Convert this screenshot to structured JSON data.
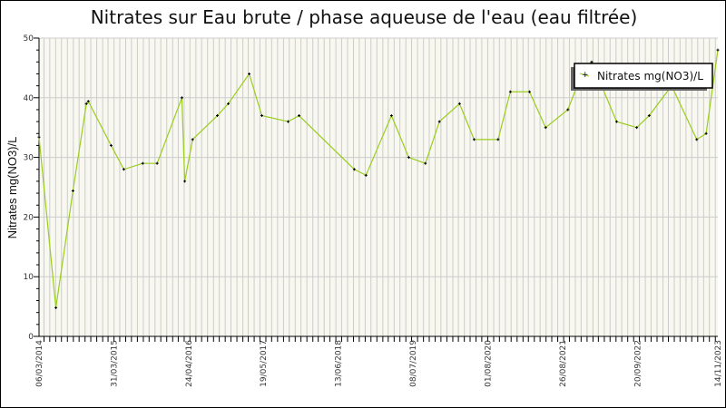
{
  "chart_data": {
    "type": "line",
    "title": "Nitrates sur Eau brute / phase aqueuse de l'eau (eau filtrée)",
    "xlabel": "",
    "ylabel": "Nitrates mg(NO3)/L",
    "ylim": [
      0,
      50
    ],
    "yticks": [
      0,
      10,
      20,
      30,
      40,
      50
    ],
    "xlim": [
      "2014-03-06",
      "2023-11-14"
    ],
    "xtick_labels": [
      "06/03/2014",
      "31/03/2015",
      "24/04/2016",
      "19/05/2017",
      "13/06/2018",
      "08/07/2019",
      "01/08/2020",
      "26/08/2021",
      "20/09/2022",
      "14/11/2023"
    ],
    "grid": true,
    "legend_position": "top-right",
    "colors": {
      "line": "#9acd1e",
      "marker": "#000000",
      "plot_bg": "#f8f8f0",
      "grid": "#cccccc"
    },
    "series": [
      {
        "name": "Nitrates mg(NO3)/L",
        "x": [
          "2014-03-06",
          "2014-06-02",
          "2014-08-30",
          "2014-11-08",
          "2014-11-18",
          "2015-03-17",
          "2015-05-22",
          "2015-08-29",
          "2015-11-12",
          "2016-03-20",
          "2016-04-04",
          "2016-05-15",
          "2016-09-21",
          "2016-11-17",
          "2017-03-06",
          "2017-05-11",
          "2017-09-25",
          "2017-11-21",
          "2018-09-05",
          "2018-11-05",
          "2019-03-18",
          "2019-06-16",
          "2019-09-11",
          "2019-11-23",
          "2020-03-07",
          "2020-05-22",
          "2020-09-24",
          "2020-11-27",
          "2021-03-07",
          "2021-05-30",
          "2021-09-23",
          "2021-12-04",
          "2022-01-25",
          "2022-06-04",
          "2022-09-17",
          "2022-11-21",
          "2023-03-18",
          "2023-07-27",
          "2023-09-14",
          "2023-11-14"
        ],
        "y": [
          33.4,
          4.8,
          24.4,
          39,
          39.4,
          32,
          28,
          29,
          29,
          40,
          26,
          33,
          37,
          39,
          44,
          37,
          36,
          37,
          28,
          27,
          37,
          30,
          29,
          36,
          39,
          33,
          33,
          41,
          41,
          35,
          38,
          44,
          46,
          36,
          35,
          37,
          42,
          33,
          34,
          48
        ]
      }
    ]
  }
}
